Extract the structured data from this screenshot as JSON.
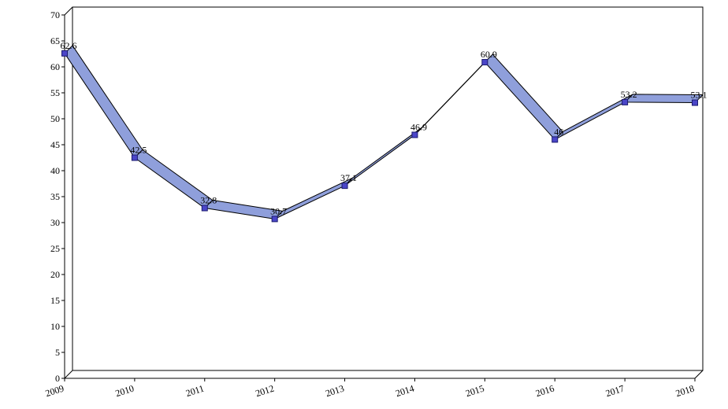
{
  "chart_data": {
    "type": "line",
    "title": "",
    "xlabel": "",
    "ylabel": "",
    "categories": [
      "2009",
      "2010",
      "2011",
      "2012",
      "2013",
      "2014",
      "2015",
      "2016",
      "2017",
      "2018"
    ],
    "series": [
      {
        "values": [
          62.6,
          42.5,
          32.8,
          30.7,
          37.1,
          46.9,
          60.9,
          46,
          53.2,
          53.1
        ],
        "labels": [
          "62.6",
          "42.5",
          "32.8",
          "30.7",
          "37.1",
          "46.9",
          "60.9",
          "46",
          "53.2",
          "53.1"
        ],
        "color": "#8f9fdb",
        "marker_color": "#4b46c8"
      }
    ],
    "ylim": [
      0,
      70
    ],
    "yticks": [
      0,
      5,
      10,
      15,
      20,
      25,
      30,
      35,
      40,
      45,
      50,
      55,
      60,
      65,
      70
    ],
    "grid": false,
    "legend": "none",
    "style": "3d-ribbon"
  }
}
